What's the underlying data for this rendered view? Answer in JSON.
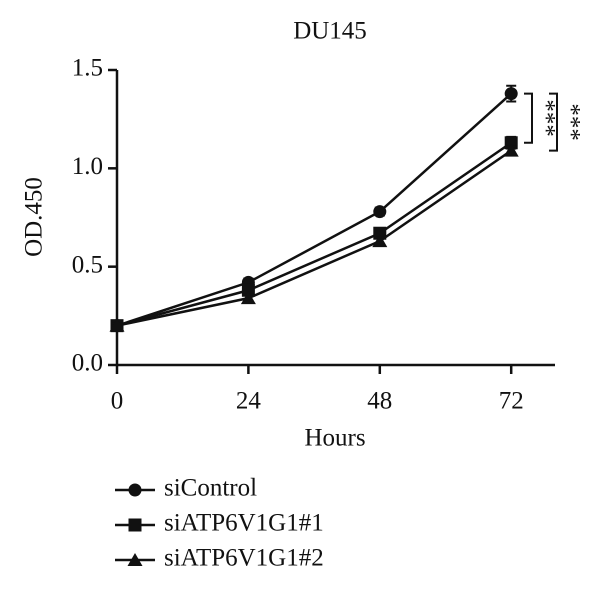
{
  "chart_data": {
    "type": "line",
    "title": "DU145",
    "x_label": "Hours",
    "y_label": "OD.450",
    "x": [
      0,
      24,
      48,
      72
    ],
    "series": [
      {
        "name": "siControl",
        "color": "#111111",
        "marker": "circle",
        "values": [
          0.2,
          0.42,
          0.78,
          1.38
        ],
        "errors": [
          0.01,
          0.02,
          0.02,
          0.04
        ]
      },
      {
        "name": "siATP6V1G1#1",
        "color": "#111111",
        "marker": "square",
        "values": [
          0.2,
          0.38,
          0.67,
          1.13
        ],
        "errors": [
          0.01,
          0.02,
          0.02,
          0.03
        ]
      },
      {
        "name": "siATP6V1G1#2",
        "color": "#111111",
        "marker": "triangle",
        "values": [
          0.2,
          0.34,
          0.63,
          1.09
        ],
        "errors": [
          0.01,
          0.02,
          0.02,
          0.02
        ]
      }
    ],
    "xlim": [
      0,
      80
    ],
    "xticks": [
      0,
      24,
      48,
      72
    ],
    "ylim": [
      0,
      1.5
    ],
    "yticks": [
      {
        "value": 0,
        "label": "0.0"
      },
      0.5,
      {
        "value": 1,
        "label": "1.0"
      },
      1.5
    ],
    "annotations": [
      "***",
      "***"
    ]
  }
}
